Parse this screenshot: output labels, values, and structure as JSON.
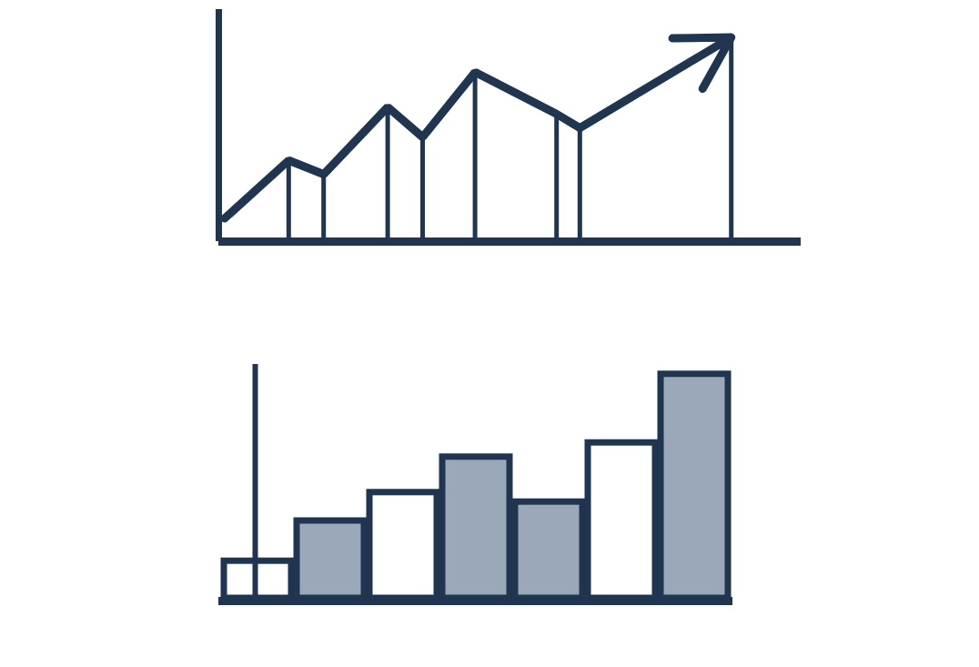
{
  "chart_data": [
    {
      "type": "line",
      "x": [
        1,
        12,
        18,
        29,
        35,
        44,
        58,
        62,
        88
      ],
      "values": [
        10,
        35,
        29,
        58,
        45,
        73,
        55,
        49,
        88
      ],
      "color": "#1f3550",
      "marker": "arrow",
      "xlim": [
        0,
        100
      ],
      "ylim": [
        0,
        100
      ],
      "xticks": [],
      "yticks": [],
      "tick_labels": false
    },
    {
      "type": "bar",
      "categories": [
        null,
        null,
        null,
        null,
        null,
        null,
        null
      ],
      "values": [
        18,
        35,
        47,
        62,
        43,
        68,
        97
      ],
      "color": "#1f3550",
      "colors": [
        "#ffffff",
        "#9aa8b9",
        "#ffffff",
        "#9aa8b9",
        "#9aa8b9",
        "#ffffff",
        "#9aa8b9"
      ],
      "ylim": [
        0,
        100
      ],
      "yticks": [],
      "tick_labels": false
    }
  ]
}
